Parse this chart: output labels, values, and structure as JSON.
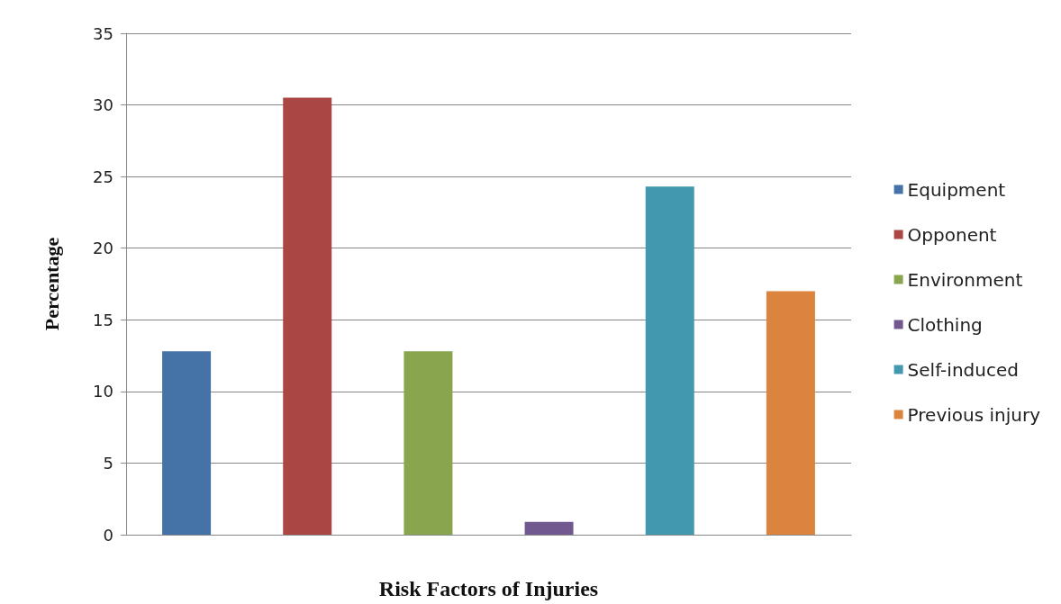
{
  "chart_data": {
    "type": "bar",
    "xlabel": "Risk Factors of Injuries",
    "ylabel": "Percentage",
    "categories": [
      null,
      null,
      null,
      null,
      null,
      null
    ],
    "series": [
      {
        "name": "Equipment",
        "color": "#4572a7",
        "values": [
          12.8,
          null,
          null,
          null,
          null,
          null
        ]
      },
      {
        "name": "Opponent",
        "color": "#aa4643",
        "values": [
          null,
          30.5,
          null,
          null,
          null,
          null
        ]
      },
      {
        "name": "Environment",
        "color": "#89a54e",
        "values": [
          null,
          null,
          12.8,
          null,
          null,
          null
        ]
      },
      {
        "name": "Clothing",
        "color": "#71588f",
        "values": [
          null,
          null,
          null,
          0.9,
          null,
          null
        ]
      },
      {
        "name": "Self-induced",
        "color": "#4198af",
        "values": [
          null,
          null,
          null,
          null,
          24.3,
          null
        ]
      },
      {
        "name": "Previous injury",
        "color": "#db843d",
        "values": [
          null,
          null,
          null,
          null,
          null,
          17
        ]
      }
    ],
    "ylim": [
      0,
      35
    ],
    "yticks": [
      0,
      5,
      10,
      15,
      20,
      25,
      30,
      35
    ],
    "grid": "y",
    "legend": "right",
    "tick_labels": "y"
  }
}
